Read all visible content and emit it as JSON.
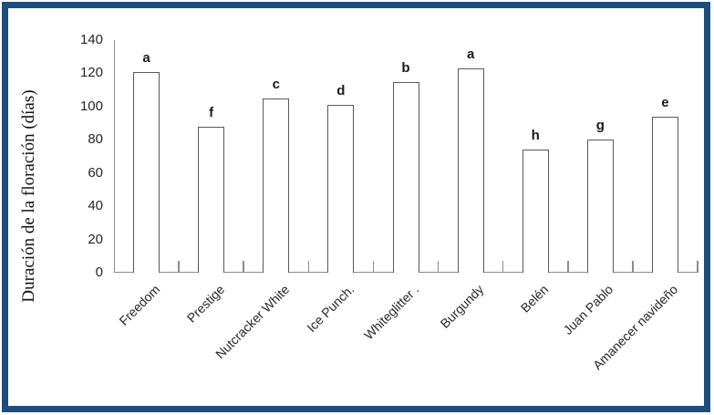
{
  "frame": {
    "border_color": "#1e4e7c",
    "background": "#ffffff"
  },
  "chart_data": {
    "type": "bar",
    "title": "",
    "xlabel": "",
    "ylabel": "Duración de la floración (días)",
    "ylim": [
      0,
      140
    ],
    "yticks": [
      0,
      20,
      40,
      60,
      80,
      100,
      120,
      140
    ],
    "grid": "off",
    "legend": "none",
    "categories": [
      "Freedom",
      "Prestige",
      "Nutcracker White",
      "Ice Punch.",
      "Whiteglitter .",
      "Burgundy",
      "Belén",
      "Juan Pablo",
      "Amanecer navideño"
    ],
    "values": [
      121,
      88,
      105,
      101,
      115,
      123,
      74,
      80,
      94
    ],
    "bar_letter_labels": [
      "a",
      "f",
      "c",
      "d",
      "b",
      "a",
      "h",
      "g",
      "e"
    ],
    "bar_fill": "#ffffff",
    "bar_border_color": "#595959",
    "axis_color": "#8c8c8c",
    "text_color": "#262626"
  }
}
